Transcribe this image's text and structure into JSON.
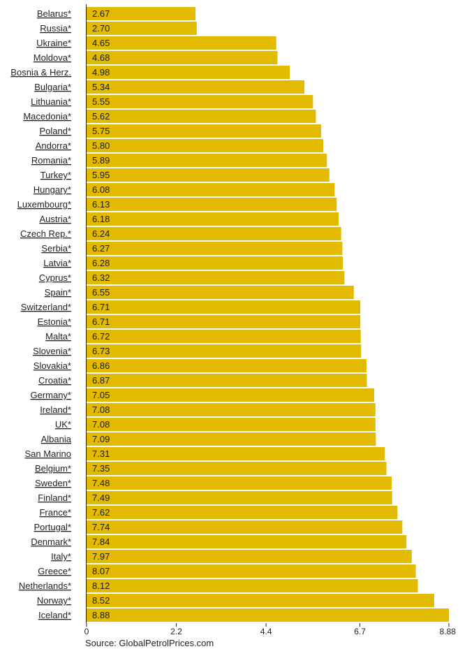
{
  "chart_data": {
    "type": "bar",
    "orientation": "horizontal",
    "categories": [
      "Belarus*",
      "Russia*",
      "Ukraine*",
      "Moldova*",
      "Bosnia & Herz.",
      "Bulgaria*",
      "Lithuania*",
      "Macedonia*",
      "Poland*",
      "Andorra*",
      "Romania*",
      "Turkey*",
      "Hungary*",
      "Luxembourg*",
      "Austria*",
      "Czech Rep.*",
      "Serbia*",
      "Latvia*",
      "Cyprus*",
      "Spain*",
      "Switzerland*",
      "Estonia*",
      "Malta*",
      "Slovenia*",
      "Slovakia*",
      "Croatia*",
      "Germany*",
      "Ireland*",
      "UK*",
      "Albania",
      "San Marino",
      "Belgium*",
      "Sweden*",
      "Finland*",
      "France*",
      "Portugal*",
      "Denmark*",
      "Italy*",
      "Greece*",
      "Netherlands*",
      "Norway*",
      "Iceland*"
    ],
    "values": [
      2.67,
      2.7,
      4.65,
      4.68,
      4.98,
      5.34,
      5.55,
      5.62,
      5.75,
      5.8,
      5.89,
      5.95,
      6.08,
      6.13,
      6.18,
      6.24,
      6.27,
      6.28,
      6.32,
      6.55,
      6.71,
      6.71,
      6.72,
      6.73,
      6.86,
      6.87,
      7.05,
      7.08,
      7.08,
      7.09,
      7.31,
      7.35,
      7.48,
      7.49,
      7.62,
      7.74,
      7.84,
      7.97,
      8.07,
      8.12,
      8.52,
      8.88
    ],
    "value_labels": [
      "2.67",
      "2.70",
      "4.65",
      "4.68",
      "4.98",
      "5.34",
      "5.55",
      "5.62",
      "5.75",
      "5.80",
      "5.89",
      "5.95",
      "6.08",
      "6.13",
      "6.18",
      "6.24",
      "6.27",
      "6.28",
      "6.32",
      "6.55",
      "6.71",
      "6.71",
      "6.72",
      "6.73",
      "6.86",
      "6.87",
      "7.05",
      "7.08",
      "7.08",
      "7.09",
      "7.31",
      "7.35",
      "7.48",
      "7.49",
      "7.62",
      "7.74",
      "7.84",
      "7.97",
      "8.07",
      "8.12",
      "8.52",
      "8.88"
    ],
    "xlim": [
      0,
      8.88
    ],
    "x_ticks": [
      0,
      2.2,
      4.4,
      6.7,
      8.88
    ],
    "x_tick_labels": [
      "0",
      "2.2",
      "4.4",
      "6.7",
      "8.88"
    ],
    "grid": false,
    "bar_color": "#e2bb00",
    "source": "Source: GlobalPetrolPrices.com"
  }
}
